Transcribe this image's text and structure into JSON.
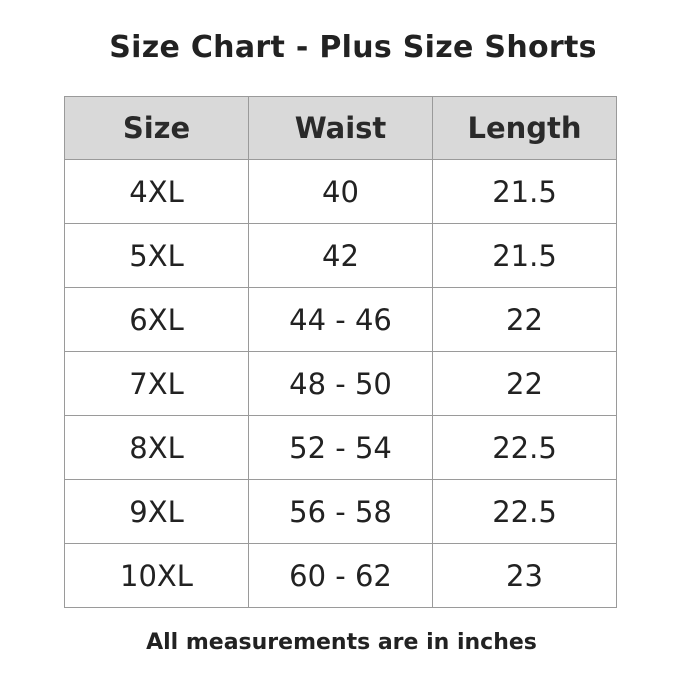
{
  "chart_data": {
    "type": "table",
    "title": "Size Chart - Plus Size Shorts",
    "columns": [
      "Size",
      "Waist",
      "Length"
    ],
    "rows": [
      [
        "4XL",
        "40",
        "21.5"
      ],
      [
        "5XL",
        "42",
        "21.5"
      ],
      [
        "6XL",
        "44 - 46",
        "22"
      ],
      [
        "7XL",
        "48 - 50",
        "22"
      ],
      [
        "8XL",
        "52 - 54",
        "22.5"
      ],
      [
        "9XL",
        "56 - 58",
        "22.5"
      ],
      [
        "10XL",
        "60 - 62",
        "23"
      ]
    ],
    "footnote": "All measurements are in inches"
  },
  "colors": {
    "header_background": "#d9d9d9",
    "border": "#9a9a9a",
    "text": "#222222"
  }
}
